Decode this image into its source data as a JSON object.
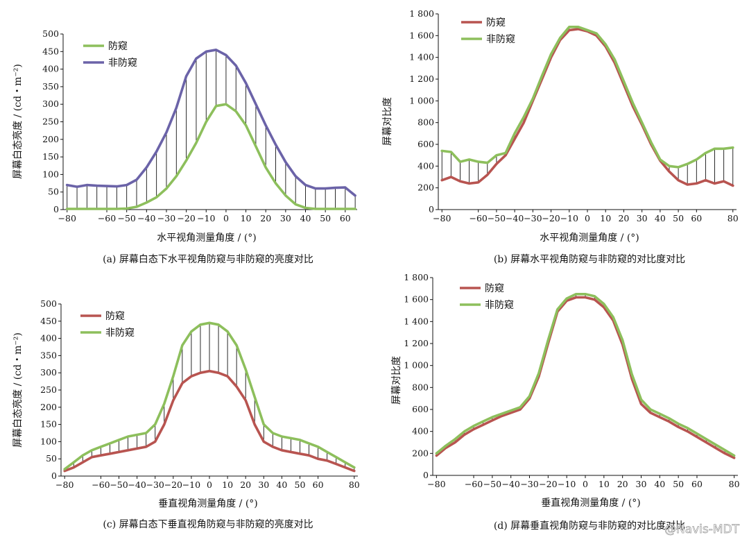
{
  "colors": {
    "green": "#8dbf5c",
    "purple": "#6b63a8",
    "red": "#b85450",
    "axis": "#111111",
    "diff": "#111111"
  },
  "watermark": "@Navis-MDT",
  "chart_data": [
    {
      "id": "a",
      "type": "line",
      "title": "(a) 屏幕白态下水平视角防窥与非防窥的亮度对比",
      "xlabel": "水平视角测量角度 / (°)",
      "ylabel": "屏幕白态亮度 / (cd・m⁻²)",
      "xlim": [
        -82,
        66
      ],
      "ylim": [
        0,
        500
      ],
      "xticks": [
        -80,
        -60,
        -50,
        -40,
        -30,
        -20,
        -10,
        0,
        10,
        20,
        30,
        40,
        50,
        60
      ],
      "xtick_labels": [
        "−80",
        "−60",
        "−50",
        "−40",
        "−30",
        "−20",
        "−10",
        "0",
        "10",
        "20",
        "30",
        "40",
        "50",
        "60"
      ],
      "yticks": [
        0,
        50,
        100,
        150,
        200,
        250,
        300,
        350,
        400,
        450,
        500
      ],
      "ytick_labels": [
        "0",
        "50",
        "100",
        "150",
        "200",
        "250",
        "300",
        "350",
        "400",
        "450",
        "500"
      ],
      "legend": "top-left",
      "fill_lines": true,
      "series": [
        {
          "name": "防窥",
          "color": "green",
          "x": [
            -80,
            -75,
            -70,
            -65,
            -60,
            -55,
            -50,
            -45,
            -40,
            -35,
            -30,
            -25,
            -20,
            -15,
            -10,
            -5,
            0,
            5,
            10,
            15,
            20,
            25,
            30,
            35,
            40,
            45,
            50,
            55,
            60,
            65
          ],
          "y": [
            2,
            2,
            2,
            2,
            2,
            2,
            3,
            8,
            20,
            35,
            60,
            95,
            140,
            190,
            250,
            295,
            300,
            280,
            240,
            180,
            120,
            75,
            40,
            15,
            5,
            2,
            2,
            2,
            2,
            2
          ]
        },
        {
          "name": "非防窥",
          "color": "purple",
          "x": [
            -80,
            -75,
            -70,
            -65,
            -60,
            -55,
            -50,
            -45,
            -40,
            -35,
            -30,
            -25,
            -20,
            -15,
            -10,
            -5,
            0,
            5,
            10,
            15,
            20,
            25,
            30,
            35,
            40,
            45,
            50,
            55,
            60,
            65
          ],
          "y": [
            70,
            65,
            70,
            68,
            67,
            66,
            70,
            85,
            120,
            165,
            220,
            290,
            380,
            430,
            450,
            455,
            440,
            410,
            360,
            300,
            240,
            185,
            135,
            95,
            70,
            60,
            60,
            62,
            63,
            40
          ]
        }
      ]
    },
    {
      "id": "b",
      "type": "line",
      "title": "(b) 屏幕水平视角防窥与非防窥的对比度对比",
      "xlabel": "水平视角测量角度 / (°)",
      "ylabel": "屏幕对比度",
      "xlim": [
        -82,
        82
      ],
      "ylim": [
        0,
        1800
      ],
      "xticks": [
        -80,
        -60,
        -50,
        -40,
        -30,
        -20,
        -10,
        0,
        10,
        20,
        30,
        40,
        50,
        60,
        80
      ],
      "xtick_labels": [
        "−80",
        "−60",
        "−50",
        "−40",
        "−30",
        "−20",
        "−10",
        "0",
        "10",
        "20",
        "30",
        "40",
        "50",
        "60",
        "80"
      ],
      "yticks": [
        0,
        200,
        400,
        600,
        800,
        1000,
        1200,
        1400,
        1600,
        1800
      ],
      "ytick_labels": [
        "0",
        "200",
        "400",
        "600",
        "800",
        "1 000",
        "1 200",
        "1 400",
        "1 600",
        "1 800"
      ],
      "legend": "top-left",
      "fill_lines": true,
      "series": [
        {
          "name": "防窥",
          "color": "red",
          "x": [
            -80,
            -75,
            -70,
            -65,
            -60,
            -55,
            -50,
            -45,
            -40,
            -35,
            -30,
            -25,
            -20,
            -15,
            -10,
            -5,
            0,
            5,
            10,
            15,
            20,
            25,
            30,
            35,
            40,
            45,
            50,
            55,
            60,
            65,
            70,
            75,
            80
          ],
          "y": [
            270,
            300,
            260,
            240,
            250,
            320,
            420,
            500,
            650,
            800,
            1000,
            1200,
            1400,
            1560,
            1650,
            1660,
            1640,
            1600,
            1500,
            1350,
            1150,
            950,
            780,
            600,
            450,
            350,
            270,
            230,
            240,
            270,
            240,
            260,
            220
          ]
        },
        {
          "name": "非防窥",
          "color": "green",
          "x": [
            -80,
            -75,
            -70,
            -65,
            -60,
            -55,
            -50,
            -45,
            -40,
            -35,
            -30,
            -25,
            -20,
            -15,
            -10,
            -5,
            0,
            5,
            10,
            15,
            20,
            25,
            30,
            35,
            40,
            45,
            50,
            55,
            60,
            65,
            70,
            75,
            80
          ],
          "y": [
            540,
            530,
            440,
            460,
            440,
            430,
            500,
            520,
            700,
            850,
            1020,
            1230,
            1430,
            1580,
            1680,
            1680,
            1650,
            1620,
            1520,
            1380,
            1180,
            980,
            800,
            620,
            460,
            400,
            390,
            420,
            460,
            520,
            560,
            560,
            570
          ]
        }
      ]
    },
    {
      "id": "c",
      "type": "line",
      "title": "(c) 屏幕白态下垂直视角防窥与非防窥的亮度对比",
      "xlabel": "垂直视角测量角度 / (°)",
      "ylabel": "屏幕白态亮度 / (cd・m⁻²)",
      "xlim": [
        -82,
        82
      ],
      "ylim": [
        0,
        500
      ],
      "xticks": [
        -80,
        -60,
        -50,
        -40,
        -30,
        -20,
        -10,
        0,
        10,
        20,
        30,
        40,
        50,
        60,
        80
      ],
      "xtick_labels": [
        "−80",
        "−60",
        "−50",
        "−40",
        "−30",
        "−20",
        "−10",
        "0",
        "10",
        "20",
        "30",
        "40",
        "50",
        "60",
        "80"
      ],
      "yticks": [
        0,
        50,
        100,
        150,
        200,
        250,
        300,
        350,
        400,
        450,
        500
      ],
      "ytick_labels": [
        "0",
        "50",
        "100",
        "150",
        "200",
        "250",
        "300",
        "350",
        "400",
        "450",
        "500"
      ],
      "legend": "top-left",
      "fill_lines": true,
      "series": [
        {
          "name": "防窥",
          "color": "red",
          "x": [
            -80,
            -75,
            -70,
            -65,
            -60,
            -55,
            -50,
            -45,
            -40,
            -35,
            -30,
            -25,
            -20,
            -15,
            -10,
            -5,
            0,
            5,
            10,
            15,
            20,
            25,
            30,
            35,
            40,
            45,
            50,
            55,
            60,
            65,
            70,
            75,
            80
          ],
          "y": [
            15,
            25,
            40,
            55,
            60,
            65,
            70,
            75,
            80,
            85,
            100,
            150,
            220,
            270,
            290,
            300,
            305,
            300,
            290,
            260,
            220,
            150,
            100,
            85,
            75,
            70,
            65,
            60,
            50,
            45,
            35,
            25,
            15
          ]
        },
        {
          "name": "非防窥",
          "color": "green",
          "x": [
            -80,
            -75,
            -70,
            -65,
            -60,
            -55,
            -50,
            -45,
            -40,
            -35,
            -30,
            -25,
            -20,
            -15,
            -10,
            -5,
            0,
            5,
            10,
            15,
            20,
            25,
            30,
            35,
            40,
            45,
            50,
            55,
            60,
            65,
            70,
            75,
            80
          ],
          "y": [
            20,
            40,
            60,
            75,
            85,
            95,
            105,
            115,
            120,
            125,
            150,
            210,
            290,
            380,
            420,
            440,
            445,
            440,
            420,
            380,
            310,
            230,
            150,
            125,
            115,
            110,
            105,
            95,
            85,
            70,
            55,
            40,
            25
          ]
        }
      ]
    },
    {
      "id": "d",
      "type": "line",
      "title": "(d) 屏幕垂直视角防窥与非防窥的对比度对比",
      "xlabel": "垂直视角测量角度 / (°)",
      "ylabel": "屏幕对比度",
      "xlim": [
        -82,
        82
      ],
      "ylim": [
        0,
        1800
      ],
      "xticks": [
        -80,
        -60,
        -50,
        -40,
        -30,
        -20,
        -10,
        0,
        10,
        20,
        30,
        40,
        50,
        60,
        80
      ],
      "xtick_labels": [
        "−80",
        "−60",
        "−50",
        "−40",
        "−30",
        "−20",
        "−10",
        "0",
        "10",
        "20",
        "30",
        "40",
        "50",
        "60",
        "80"
      ],
      "yticks": [
        0,
        200,
        400,
        600,
        800,
        1000,
        1200,
        1400,
        1600,
        1800
      ],
      "ytick_labels": [
        "0",
        "200",
        "400",
        "600",
        "800",
        "1 000",
        "1 200",
        "1 400",
        "1 600",
        "1 800"
      ],
      "legend": "top-left",
      "fill_lines": true,
      "series": [
        {
          "name": "防窥",
          "color": "red",
          "x": [
            -80,
            -75,
            -70,
            -65,
            -60,
            -55,
            -50,
            -45,
            -40,
            -35,
            -30,
            -25,
            -20,
            -15,
            -10,
            -5,
            0,
            5,
            10,
            15,
            20,
            25,
            30,
            35,
            40,
            45,
            50,
            55,
            60,
            65,
            70,
            75,
            80
          ],
          "y": [
            180,
            250,
            300,
            370,
            420,
            460,
            500,
            540,
            570,
            600,
            700,
            900,
            1200,
            1490,
            1590,
            1620,
            1620,
            1600,
            1530,
            1410,
            1190,
            880,
            650,
            570,
            530,
            490,
            440,
            400,
            350,
            300,
            250,
            200,
            160
          ]
        },
        {
          "name": "非防窥",
          "color": "green",
          "x": [
            -80,
            -75,
            -70,
            -65,
            -60,
            -55,
            -50,
            -45,
            -40,
            -35,
            -30,
            -25,
            -20,
            -15,
            -10,
            -5,
            0,
            5,
            10,
            15,
            20,
            25,
            30,
            35,
            40,
            45,
            50,
            55,
            60,
            65,
            70,
            75,
            80
          ],
          "y": [
            200,
            270,
            330,
            400,
            450,
            490,
            530,
            560,
            590,
            620,
            720,
            930,
            1230,
            1510,
            1610,
            1650,
            1650,
            1630,
            1560,
            1440,
            1230,
            920,
            690,
            600,
            560,
            520,
            470,
            430,
            380,
            330,
            280,
            230,
            180
          ]
        }
      ]
    }
  ]
}
